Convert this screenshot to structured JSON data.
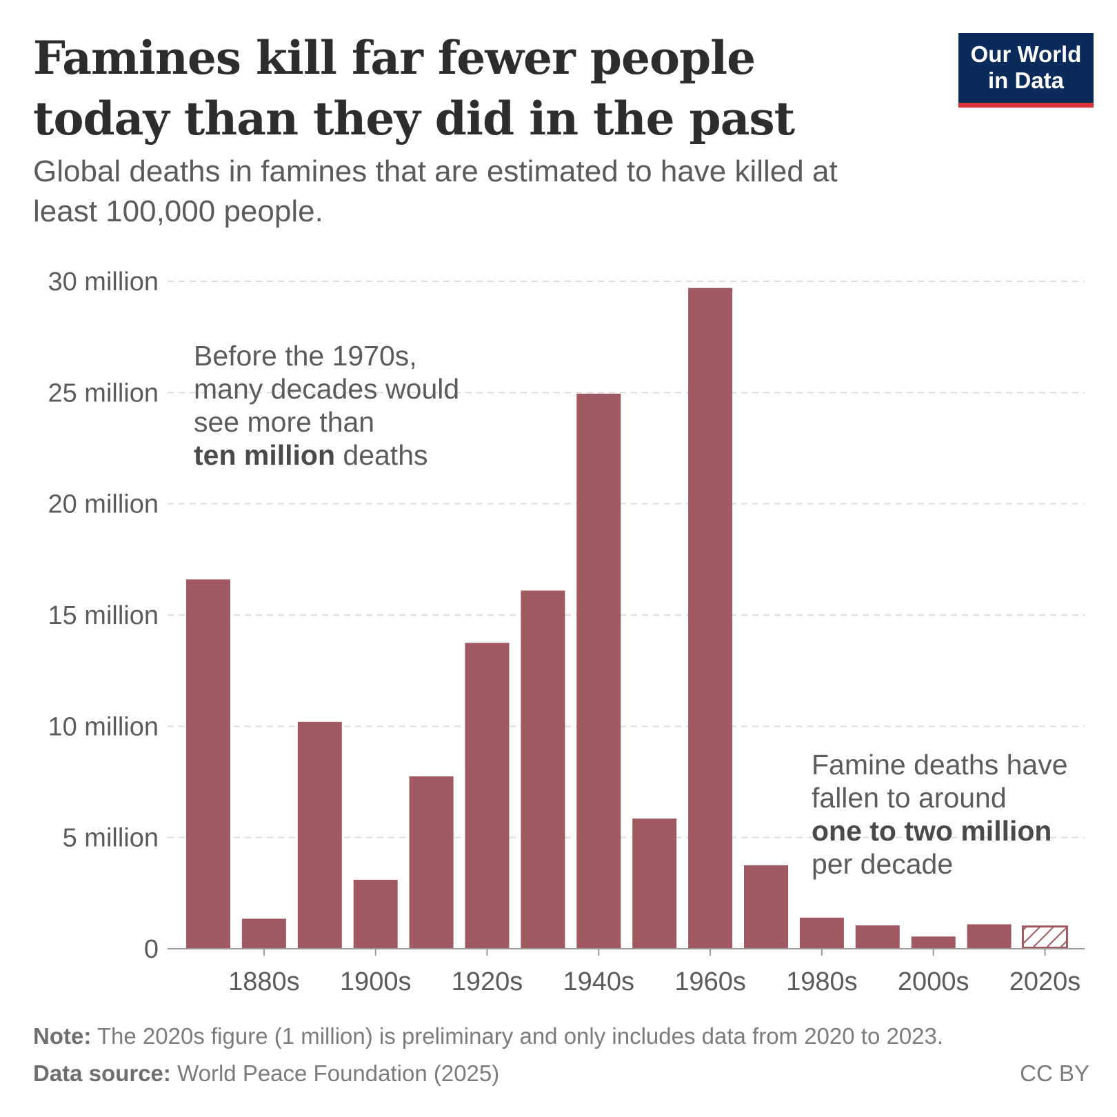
{
  "header": {
    "title": "Famines kill far fewer people today than they did in the past",
    "subtitle": "Global deaths in famines that are estimated to have killed at least 100,000 people."
  },
  "logo": {
    "line1": "Our World",
    "line2": "in Data"
  },
  "annotations": {
    "left": {
      "line1": "Before the 1970s,",
      "line2": "many decades would",
      "line3": "see more than",
      "bold": "ten million",
      "rest": " deaths"
    },
    "right": {
      "line1": "Famine deaths have",
      "line2": "fallen to around",
      "bold": "one to two million",
      "line4": "per decade"
    }
  },
  "footer": {
    "note_label": "Note:",
    "note_text": " The 2020s figure (1 million) is preliminary and only includes data from 2020 to 2023.",
    "source_label": "Data source:",
    "source_text": " World Peace Foundation (2025)",
    "license": "CC BY"
  },
  "colors": {
    "bar": "#a05961",
    "grid": "#dddddd",
    "axis": "#9a9a9a"
  },
  "chart_data": {
    "type": "bar",
    "categories": [
      "1870s",
      "1880s",
      "1890s",
      "1900s",
      "1910s",
      "1920s",
      "1930s",
      "1940s",
      "1950s",
      "1960s",
      "1970s",
      "1980s",
      "1990s",
      "2000s",
      "2010s",
      "2020s"
    ],
    "values": [
      16.6,
      1.35,
      10.2,
      3.1,
      7.75,
      13.75,
      16.1,
      24.95,
      5.85,
      29.7,
      3.75,
      1.4,
      1.05,
      0.55,
      1.1,
      1.0
    ],
    "preliminary": [
      false,
      false,
      false,
      false,
      false,
      false,
      false,
      false,
      false,
      false,
      false,
      false,
      false,
      false,
      false,
      true
    ],
    "x_tick_labels": [
      "1880s",
      "1900s",
      "1920s",
      "1940s",
      "1960s",
      "1980s",
      "2000s",
      "2020s"
    ],
    "y_ticks": [
      0,
      5,
      10,
      15,
      20,
      25,
      30
    ],
    "y_tick_labels": [
      "0",
      "5 million",
      "10 million",
      "15 million",
      "20 million",
      "25 million",
      "30 million"
    ],
    "ylim": [
      0,
      30
    ],
    "unit": "million",
    "grid": true
  }
}
